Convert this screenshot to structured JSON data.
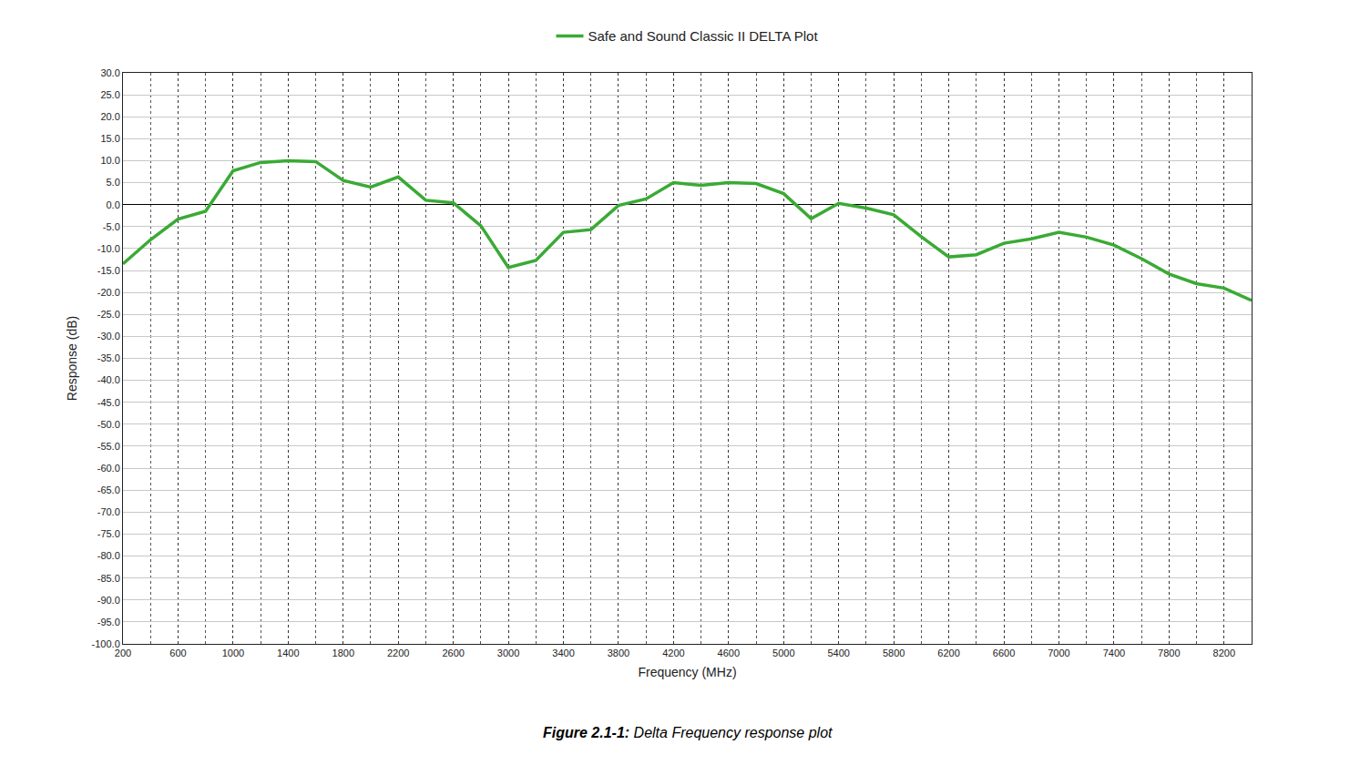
{
  "chart_data": {
    "type": "line",
    "caption": "Figure 2.1-1: Delta Frequency response plot",
    "x_label": "Frequency (MHz)",
    "y_label": "Response (dB)",
    "x": [
      200,
      400,
      600,
      800,
      1000,
      1200,
      1400,
      1600,
      1800,
      2000,
      2200,
      2400,
      2600,
      2800,
      3000,
      3200,
      3400,
      3600,
      3800,
      4000,
      4200,
      4400,
      4600,
      4800,
      5000,
      5200,
      5400,
      5600,
      5800,
      6000,
      6200,
      6400,
      6600,
      6800,
      7000,
      7200,
      7400,
      7600,
      7800,
      8000,
      8200,
      8400
    ],
    "series": [
      {
        "name": "Safe and Sound Classic II DELTA Plot",
        "color": "#3aaa35",
        "values": [
          -13.5,
          -8,
          -3.3,
          -1.5,
          7.7,
          9.6,
          10,
          9.8,
          5.5,
          4,
          6.3,
          1,
          0.4,
          -4.8,
          -14.3,
          -12.7,
          -6.3,
          -5.7,
          -0.2,
          1.3,
          5,
          4.4,
          5,
          4.8,
          2.5,
          -3.2,
          0.3,
          -0.8,
          -2.3,
          -7.3,
          -11.9,
          -11.4,
          -8.8,
          -7.8,
          -6.3,
          -7.4,
          -9.2,
          -12.3,
          -15.8,
          -18,
          -19,
          -21.8
        ]
      }
    ],
    "xlim": [
      200,
      8400
    ],
    "xticks": [
      200,
      600,
      1000,
      1400,
      1800,
      2200,
      2600,
      3000,
      3400,
      3800,
      4200,
      4600,
      5000,
      5400,
      5800,
      6200,
      6600,
      7000,
      7400,
      7800,
      8200
    ],
    "ylim": [
      -100,
      30
    ],
    "yticks": [
      {
        "value": 30,
        "label": "30.0"
      },
      {
        "value": 25,
        "label": "25.0"
      },
      {
        "value": 20,
        "label": "20.0"
      },
      {
        "value": 15,
        "label": "15.0"
      },
      {
        "value": 10,
        "label": "10.0"
      },
      {
        "value": 5,
        "label": "5.0"
      },
      {
        "value": 0,
        "label": "0.0"
      },
      {
        "value": -5,
        "label": "-5.0"
      },
      {
        "value": -10,
        "label": "-10.0"
      },
      {
        "value": -15,
        "label": "-15.0"
      },
      {
        "value": -20,
        "label": "-20.0"
      },
      {
        "value": -25,
        "label": "-25.0"
      },
      {
        "value": -30,
        "label": "-30.0"
      },
      {
        "value": -35,
        "label": "-35.0"
      },
      {
        "value": -40,
        "label": "-40.0"
      },
      {
        "value": -45,
        "label": "-45.0"
      },
      {
        "value": -50,
        "label": "-50.0"
      },
      {
        "value": -55,
        "label": "-55.0"
      },
      {
        "value": -60,
        "label": "-60.0"
      },
      {
        "value": -65,
        "label": "-65.0"
      },
      {
        "value": -70,
        "label": "-70.0"
      },
      {
        "value": -75,
        "label": "-75.0"
      },
      {
        "value": -80,
        "label": "-80.0"
      },
      {
        "value": -85,
        "label": "-85.0"
      },
      {
        "value": -90,
        "label": "-90.0"
      },
      {
        "value": -95,
        "label": "-95.0"
      },
      {
        "value": -100,
        "label": "-100.0"
      }
    ],
    "grid": true,
    "legend": "top"
  }
}
